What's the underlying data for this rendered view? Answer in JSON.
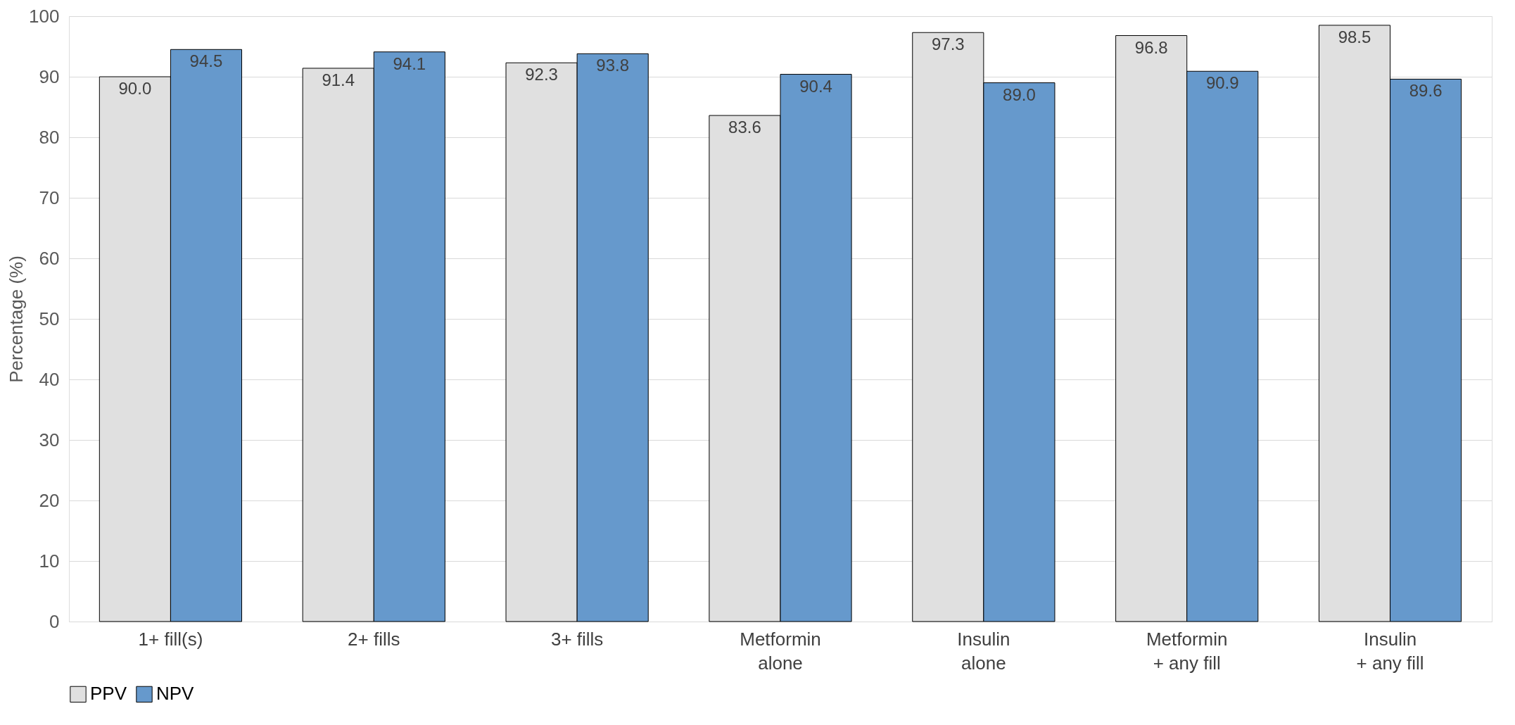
{
  "chart_data": {
    "type": "bar",
    "ylabel": "Percentage (%)",
    "categories": [
      "1+ fill(s)",
      "2+ fills",
      "3+ fills",
      "Metformin\nalone",
      "Insulin\nalone",
      "Metformin\n+ any fill",
      "Insulin\n+ any fill"
    ],
    "series": [
      {
        "name": "PPV",
        "color": "#e0e0e0",
        "values": [
          90.0,
          91.4,
          92.3,
          83.6,
          97.3,
          96.8,
          98.5
        ],
        "value_labels": [
          "90.0",
          "91.4",
          "92.3",
          "83.6",
          "97.3",
          "96.8",
          "98.5"
        ]
      },
      {
        "name": "NPV",
        "color": "#6699cc",
        "values": [
          94.5,
          94.1,
          93.8,
          90.4,
          89.0,
          90.9,
          89.6
        ],
        "value_labels": [
          "94.5",
          "94.1",
          "93.8",
          "90.4",
          "89.0",
          "90.9",
          "89.6"
        ]
      }
    ],
    "ylim": [
      0,
      100
    ],
    "yticks": [
      0,
      10,
      20,
      30,
      40,
      50,
      60,
      70,
      80,
      90,
      100
    ],
    "grid": "y",
    "legend": "bottom"
  }
}
